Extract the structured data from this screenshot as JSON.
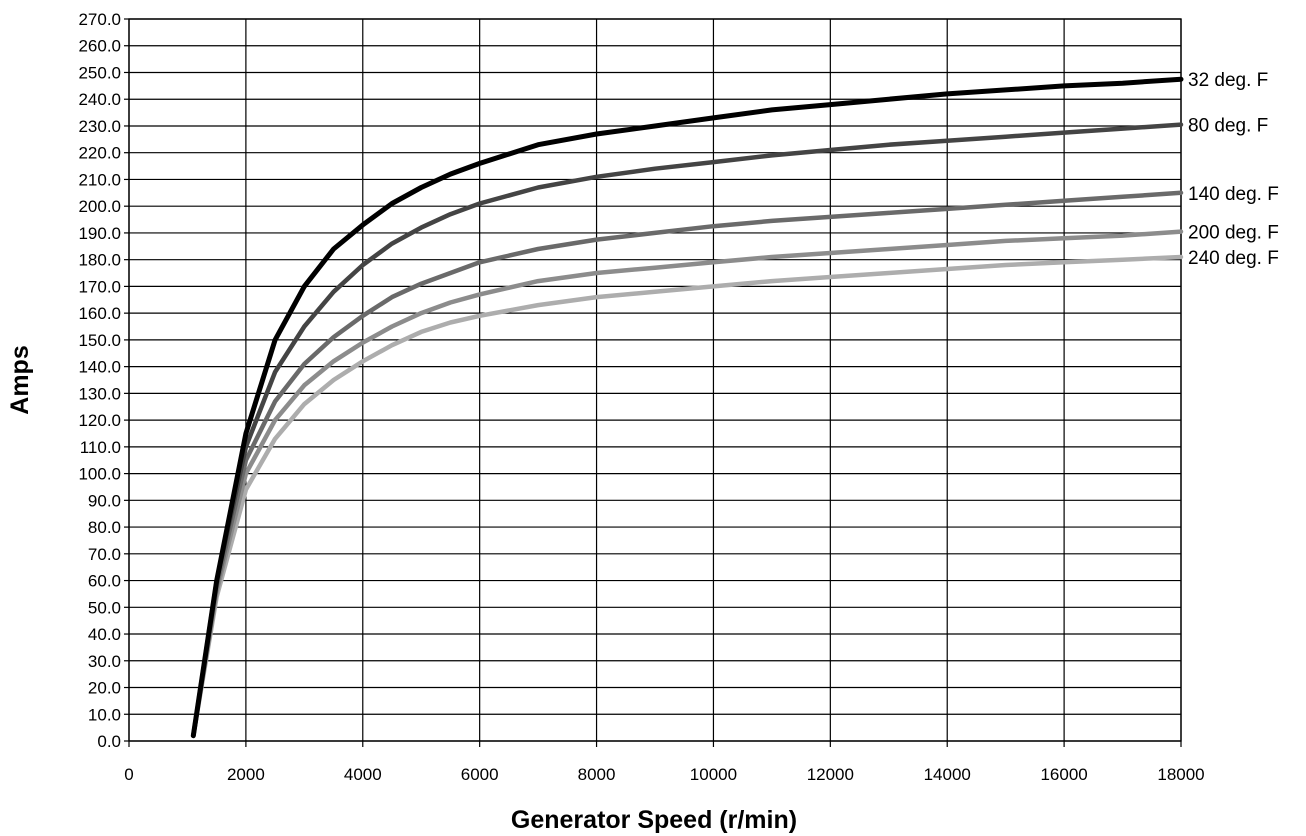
{
  "chart_data": {
    "type": "line",
    "title": "",
    "xlabel": "Generator Speed (r/min)",
    "ylabel": "Amps",
    "xlim": [
      0,
      18000
    ],
    "ylim": [
      0,
      270
    ],
    "x_ticks": [
      "0",
      "2000",
      "4000",
      "6000",
      "8000",
      "10000",
      "12000",
      "14000",
      "16000",
      "18000"
    ],
    "y_ticks": [
      "0.0",
      "10.0",
      "20.0",
      "30.0",
      "40.0",
      "50.0",
      "60.0",
      "70.0",
      "80.0",
      "90.0",
      "100.0",
      "110.0",
      "120.0",
      "130.0",
      "140.0",
      "150.0",
      "160.0",
      "170.0",
      "180.0",
      "190.0",
      "200.0",
      "210.0",
      "220.0",
      "230.0",
      "240.0",
      "250.0",
      "260.0",
      "270.0"
    ],
    "grid": true,
    "legend": "labels at right end of each line",
    "series": [
      {
        "name": "32 deg. F",
        "color": "#000000",
        "x": [
          1100,
          1500,
          2000,
          2500,
          3000,
          3500,
          4000,
          4500,
          5000,
          5500,
          6000,
          7000,
          8000,
          9000,
          10000,
          11000,
          12000,
          13000,
          14000,
          15000,
          16000,
          17000,
          18000
        ],
        "y": [
          2,
          60,
          115,
          150,
          170,
          184,
          193,
          201,
          207,
          212,
          216,
          223,
          227,
          230,
          233,
          236,
          238,
          240,
          242,
          243.5,
          245,
          246,
          247.5
        ]
      },
      {
        "name": "80 deg. F",
        "color": "#444444",
        "x": [
          1100,
          1500,
          2000,
          2500,
          3000,
          3500,
          4000,
          4500,
          5000,
          5500,
          6000,
          7000,
          8000,
          9000,
          10000,
          11000,
          12000,
          13000,
          14000,
          15000,
          16000,
          17000,
          18000
        ],
        "y": [
          2,
          60,
          110,
          138,
          155,
          168,
          178,
          186,
          192,
          197,
          201,
          207,
          211,
          214,
          216.5,
          219,
          221,
          223,
          224.5,
          226,
          227.5,
          229,
          230.5
        ]
      },
      {
        "name": "140 deg. F",
        "color": "#6a6a6a",
        "x": [
          1100,
          1500,
          2000,
          2500,
          3000,
          3500,
          4000,
          4500,
          5000,
          5500,
          6000,
          7000,
          8000,
          9000,
          10000,
          11000,
          12000,
          13000,
          14000,
          15000,
          16000,
          17000,
          18000
        ],
        "y": [
          2,
          58,
          105,
          127,
          141,
          151,
          159,
          166,
          171,
          175,
          179,
          184,
          187.5,
          190,
          192.5,
          194.5,
          196,
          197.5,
          199,
          200.5,
          202,
          203.5,
          205
        ]
      },
      {
        "name": "200 deg. F",
        "color": "#8c8c8c",
        "x": [
          1100,
          1500,
          2000,
          2500,
          3000,
          3500,
          4000,
          4500,
          5000,
          5500,
          6000,
          7000,
          8000,
          9000,
          10000,
          11000,
          12000,
          13000,
          14000,
          15000,
          16000,
          17000,
          18000
        ],
        "y": [
          2,
          56,
          100,
          120,
          133,
          142,
          149,
          155,
          160,
          164,
          167,
          172,
          175,
          177,
          179,
          181,
          182.5,
          184,
          185.5,
          187,
          188,
          189,
          190.5
        ]
      },
      {
        "name": "240 deg. F",
        "color": "#adadad",
        "x": [
          1100,
          1500,
          2000,
          2500,
          3000,
          3500,
          4000,
          4500,
          5000,
          5500,
          6000,
          7000,
          8000,
          9000,
          10000,
          11000,
          12000,
          13000,
          14000,
          15000,
          16000,
          17000,
          18000
        ],
        "y": [
          2,
          54,
          94,
          113,
          126,
          135,
          142,
          148,
          153,
          156.5,
          159,
          163,
          166,
          168,
          170,
          172,
          173.5,
          175,
          176.5,
          178,
          179,
          180,
          181
        ]
      }
    ]
  }
}
